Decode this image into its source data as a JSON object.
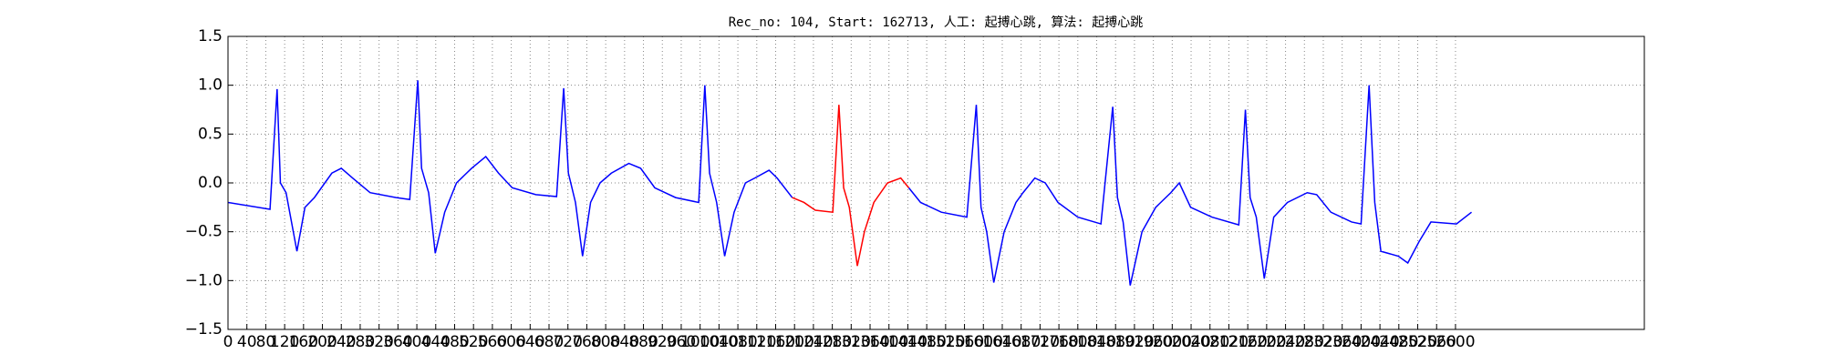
{
  "chart_data": {
    "type": "line",
    "title": "Rec_no: 104, Start: 162713, 人工: 起搏心跳, 算法: 起搏心跳",
    "grid": true,
    "xlim": [
      0,
      3000
    ],
    "ylim": [
      -1.5,
      1.5
    ],
    "xticks": [
      0,
      40,
      80,
      120,
      160,
      200,
      240,
      280,
      320,
      360,
      400,
      440,
      480,
      520,
      560,
      600,
      640,
      680,
      720,
      760,
      800,
      840,
      880,
      920,
      960,
      1000,
      1040,
      1080,
      1120,
      1160,
      1200,
      1240,
      1280,
      1320,
      1360,
      1400,
      1440,
      1480,
      1520,
      1560,
      1600,
      1640,
      1680,
      1720,
      1760,
      1800,
      1840,
      1880,
      1920,
      1960,
      2000,
      2040,
      2080,
      2120,
      2160,
      2200,
      2240,
      2280,
      2320,
      2360,
      2400,
      2440,
      2480,
      2520,
      2560,
      2600
    ],
    "yticks": [
      {
        "value": -1.5,
        "label": "−1.5"
      },
      {
        "value": -1,
        "label": "−1.0"
      },
      {
        "value": -0.5,
        "label": "−0.5"
      },
      {
        "value": 0,
        "label": "0.0"
      },
      {
        "value": 0.5,
        "label": "0.5"
      },
      {
        "value": 1,
        "label": "1.0"
      },
      {
        "value": 1.5,
        "label": "1.5"
      }
    ],
    "series": [
      {
        "color": "#0000ff",
        "x": [
          0,
          89,
          104,
          111,
          123,
          146,
          163,
          183,
          220,
          240,
          264,
          301,
          356,
          385,
          402,
          410,
          425,
          439,
          459,
          484,
          516,
          546,
          573,
          602,
          652,
          696,
          711,
          721,
          736,
          751,
          768,
          788,
          812,
          849,
          874,
          904,
          948,
          997,
          1010,
          1020,
          1035,
          1052,
          1072,
          1096,
          1116,
          1146,
          1163,
          1195,
          1300,
          1442,
          1467,
          1511,
          1565,
          1585,
          1595,
          1607,
          1622,
          1644,
          1669,
          1684,
          1709,
          1731,
          1758,
          1800,
          1849,
          1874,
          1884,
          1896,
          1911,
          1936,
          1965,
          1997,
          2015,
          2039,
          2084,
          2141,
          2155,
          2165,
          2178,
          2195,
          2215,
          2244,
          2286,
          2306,
          2336,
          2380,
          2400,
          2417,
          2429,
          2442,
          2479,
          2499,
          2523,
          2548,
          2602,
          2634
        ],
        "values": [
          -0.2,
          -0.27,
          0.96,
          0,
          -0.1,
          -0.7,
          -0.25,
          -0.15,
          0.1,
          0.15,
          0.05,
          -0.1,
          -0.15,
          -0.17,
          1.05,
          0.15,
          -0.1,
          -0.72,
          -0.3,
          0,
          0.15,
          0.27,
          0.1,
          -0.05,
          -0.12,
          -0.14,
          0.97,
          0.1,
          -0.2,
          -0.75,
          -0.2,
          0,
          0.1,
          0.2,
          0.15,
          -0.05,
          -0.15,
          -0.2,
          1.0,
          0.1,
          -0.2,
          -0.75,
          -0.3,
          0,
          0.05,
          0.13,
          0.05,
          -0.15,
          null,
          -0.05,
          -0.2,
          -0.3,
          -0.35,
          0.8,
          -0.25,
          -0.5,
          -1.02,
          -0.5,
          -0.2,
          -0.1,
          0.05,
          0,
          -0.2,
          -0.35,
          -0.42,
          0.78,
          -0.15,
          -0.4,
          -1.05,
          -0.5,
          -0.25,
          -0.1,
          0,
          -0.25,
          -0.35,
          -0.43,
          0.75,
          -0.15,
          -0.35,
          -0.98,
          -0.35,
          -0.2,
          -0.1,
          -0.12,
          -0.3,
          -0.4,
          -0.42,
          1.0,
          -0.2,
          -0.7,
          -0.75,
          -0.82,
          -0.6,
          -0.4,
          -0.42,
          -0.3
        ]
      },
      {
        "color": "#ff0000",
        "x": [
          1195,
          1220,
          1244,
          1281,
          1294,
          1304,
          1316,
          1333,
          1348,
          1368,
          1397,
          1425,
          1442
        ],
        "values": [
          -0.15,
          -0.2,
          -0.28,
          -0.3,
          0.8,
          -0.05,
          -0.25,
          -0.85,
          -0.5,
          -0.2,
          0,
          0.05,
          -0.05
        ]
      }
    ]
  }
}
